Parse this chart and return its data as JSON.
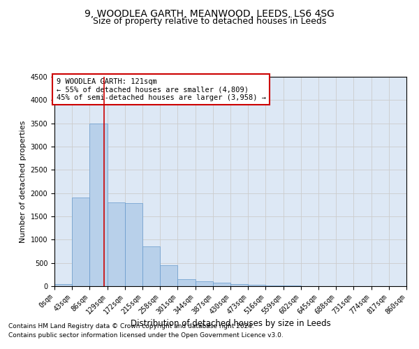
{
  "title1": "9, WOODLEA GARTH, MEANWOOD, LEEDS, LS6 4SG",
  "title2": "Size of property relative to detached houses in Leeds",
  "xlabel": "Distribution of detached houses by size in Leeds",
  "ylabel": "Number of detached properties",
  "footnote1": "Contains HM Land Registry data © Crown copyright and database right 2024.",
  "footnote2": "Contains public sector information licensed under the Open Government Licence v3.0.",
  "annotation_line1": "9 WOODLEA GARTH: 121sqm",
  "annotation_line2": "← 55% of detached houses are smaller (4,809)",
  "annotation_line3": "45% of semi-detached houses are larger (3,958) →",
  "bin_edges": [
    0,
    43,
    86,
    129,
    172,
    215,
    258,
    301,
    344,
    387,
    430,
    473,
    516,
    559,
    602,
    645,
    688,
    731,
    774,
    817,
    860
  ],
  "bar_heights": [
    50,
    1900,
    3500,
    1800,
    1780,
    850,
    450,
    155,
    100,
    75,
    50,
    35,
    15,
    8,
    5,
    4,
    3,
    2,
    1,
    1
  ],
  "bar_color": "#b8d0ea",
  "bar_edge_color": "#6699cc",
  "vline_x": 121,
  "vline_color": "#cc0000",
  "ylim": [
    0,
    4500
  ],
  "yticks": [
    0,
    500,
    1000,
    1500,
    2000,
    2500,
    3000,
    3500,
    4000,
    4500
  ],
  "grid_color": "#cccccc",
  "bg_color": "#dde8f5",
  "annotation_box_color": "#cc0000",
  "title1_fontsize": 10,
  "title2_fontsize": 9,
  "xlabel_fontsize": 8.5,
  "ylabel_fontsize": 8,
  "tick_fontsize": 7,
  "annotation_fontsize": 7.5,
  "footnote_fontsize": 6.5
}
